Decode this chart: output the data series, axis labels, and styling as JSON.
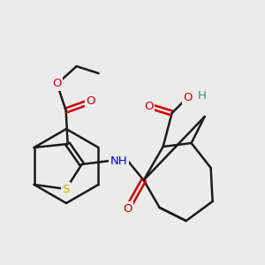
{
  "background_color": "#ebebeb",
  "bond_color": "#1a1a1a",
  "oxygen_color": "#cc0000",
  "nitrogen_color": "#0000dd",
  "sulfur_color": "#bbbb00",
  "hydrogen_color": "#3a8888",
  "figsize": [
    3.0,
    3.0
  ],
  "dpi": 100,
  "xlim": [
    0,
    300
  ],
  "ylim": [
    0,
    300
  ]
}
